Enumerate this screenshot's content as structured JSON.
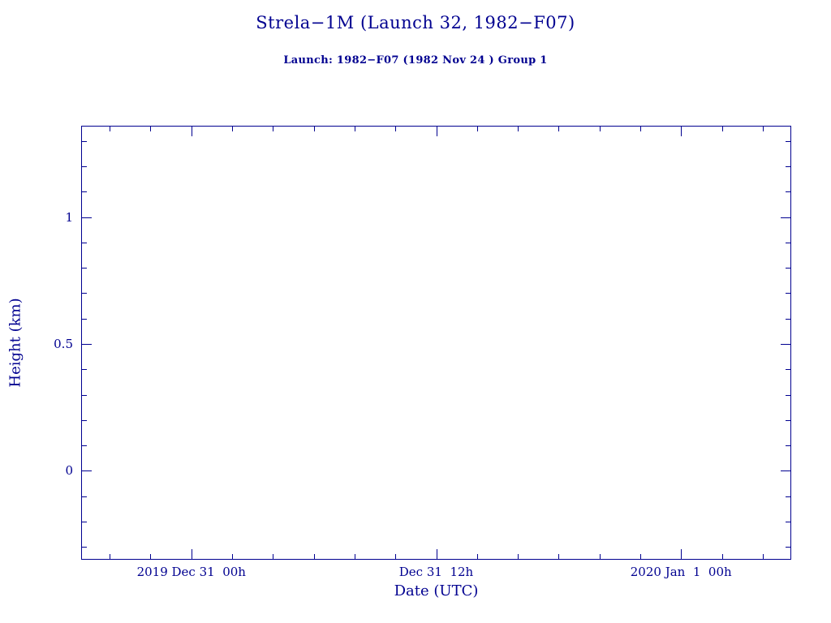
{
  "page": {
    "background_color": "#ffffff",
    "accent_color": "#000090"
  },
  "chart_data": {
    "type": "line",
    "title": "Strela−1M (Launch 32, 1982−F07)",
    "subtitle": "Launch: 1982−F07  (1982 Nov 24 )  Group 1",
    "xlabel": "Date (UTC)",
    "ylabel": "Height (km)",
    "grid": false,
    "legend": "none",
    "frame_color": "#000090",
    "x_axis": {
      "unit": "hours from 2019 Dec 31 00h UTC",
      "lim": [
        -5.4,
        29.4
      ],
      "minor_step": 2,
      "major_ticks": [
        {
          "value": 0,
          "label": "2019 Dec 31  00h"
        },
        {
          "value": 12,
          "label": "Dec 31  12h"
        },
        {
          "value": 24,
          "label": "2020 Jan  1  00h"
        }
      ]
    },
    "y_axis": {
      "unit": "km",
      "lim": [
        -0.35,
        1.36
      ],
      "minor_step": 0.1,
      "major_ticks": [
        {
          "value": 0,
          "label": "0"
        },
        {
          "value": 0.5,
          "label": "0.5"
        },
        {
          "value": 1,
          "label": "1"
        }
      ]
    },
    "series": []
  }
}
